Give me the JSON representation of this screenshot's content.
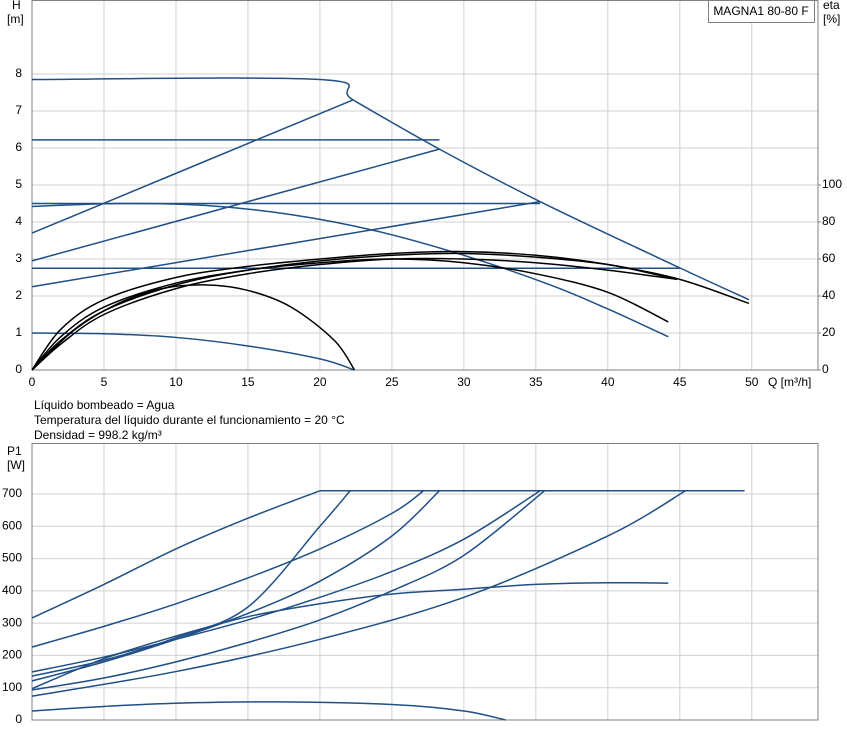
{
  "chart_data": [
    {
      "type": "line",
      "title": "MAGNA1 80-80 F",
      "ylabel": "H",
      "yunit": "[m]",
      "y2label": "eta",
      "y2unit": "[%]",
      "xlabel": "Q [m³/h]",
      "xlim": [
        0,
        54.6
      ],
      "ylim": [
        0,
        10
      ],
      "y2lim": [
        0,
        200
      ],
      "xticks": [
        0,
        5,
        10,
        15,
        20,
        25,
        30,
        35,
        40,
        45,
        50
      ],
      "yticks": [
        0,
        1,
        2,
        3,
        4,
        5,
        6,
        7,
        8
      ],
      "y2ticks": [
        0,
        20,
        40,
        60,
        80,
        100
      ],
      "grid": true,
      "annotations": [
        "Líquido bombeado = Agua",
        "Temperatura del líquido durante el funcionamiento = 20 °C",
        "Densidad = 998.2 kg/m³"
      ],
      "series": [
        {
          "color": "#1f4f85",
          "x": [
            0,
            20,
            22.3,
            28.3,
            35.3,
            45,
            49.8
          ],
          "values": [
            7.85,
            7.85,
            7.3,
            5.97,
            4.55,
            2.76,
            1.9
          ]
        },
        {
          "color": "#1f4f85",
          "x": [
            0,
            28.3
          ],
          "values": [
            6.22,
            6.22
          ]
        },
        {
          "color": "#1f4f85",
          "x": [
            0,
            35.3
          ],
          "values": [
            4.5,
            4.5
          ]
        },
        {
          "color": "#1f4f85",
          "x": [
            0,
            45
          ],
          "values": [
            2.75,
            2.75
          ]
        },
        {
          "color": "#1f4f85",
          "x": [
            0,
            22.3
          ],
          "values": [
            3.7,
            7.3
          ]
        },
        {
          "color": "#1f4f85",
          "x": [
            0,
            28.3
          ],
          "values": [
            2.95,
            5.97
          ]
        },
        {
          "color": "#1f4f85",
          "x": [
            0,
            35.3
          ],
          "values": [
            2.25,
            4.55
          ]
        },
        {
          "color": "#1f4f85",
          "x": [
            0,
            6,
            12,
            18,
            24,
            30,
            36,
            40,
            44.2
          ],
          "values": [
            4.42,
            4.5,
            4.45,
            4.2,
            3.75,
            3.1,
            2.3,
            1.65,
            0.9
          ]
        },
        {
          "color": "#1f4f85",
          "x": [
            0,
            5,
            10,
            15,
            20,
            22.4
          ],
          "values": [
            1.0,
            0.98,
            0.88,
            0.65,
            0.3,
            0
          ]
        },
        {
          "color": "#000000",
          "axis": "y2",
          "x": [
            0,
            3,
            6,
            9,
            12,
            15,
            18,
            21,
            22.4
          ],
          "values": [
            0,
            22,
            36,
            44,
            46,
            43,
            34,
            16,
            0
          ]
        },
        {
          "color": "#000000",
          "axis": "y2",
          "x": [
            0,
            2,
            5,
            10,
            15,
            20,
            25,
            30,
            35,
            40,
            45,
            49.8
          ],
          "values": [
            0,
            22,
            38,
            50,
            56,
            60,
            63,
            64,
            62,
            57,
            49,
            36
          ]
        },
        {
          "color": "#000000",
          "axis": "y2",
          "x": [
            0,
            2,
            5,
            10,
            15,
            20,
            25,
            30,
            35,
            40,
            44.8
          ],
          "values": [
            0,
            18,
            34,
            47,
            54,
            59,
            62,
            63,
            61,
            57,
            49
          ]
        },
        {
          "color": "#000000",
          "axis": "y2",
          "x": [
            0,
            2,
            5,
            10,
            15,
            20,
            25,
            30,
            35,
            40,
            44.2
          ],
          "values": [
            0,
            16,
            32,
            46,
            54,
            58,
            60,
            58,
            52,
            42,
            26
          ]
        },
        {
          "color": "#000000",
          "axis": "y2",
          "x": [
            0,
            2,
            5,
            10,
            15,
            20,
            25,
            30,
            35,
            40,
            44.8
          ],
          "values": [
            0,
            14,
            30,
            44,
            52,
            57,
            60,
            60,
            58,
            54,
            49
          ]
        }
      ]
    },
    {
      "type": "line",
      "ylabel": "P1",
      "yunit": "[W]",
      "xlim": [
        0,
        54.6
      ],
      "ylim": [
        0,
        858
      ],
      "xticks": [
        0,
        5,
        10,
        15,
        20,
        25,
        30,
        35,
        40,
        45,
        50
      ],
      "yticks": [
        0,
        100,
        200,
        300,
        400,
        500,
        600,
        700
      ],
      "grid": true,
      "series": [
        {
          "color": "#1f4f85",
          "x": [
            0,
            5,
            10,
            15,
            20
          ],
          "values": [
            316,
            420,
            530,
            625,
            710
          ]
        },
        {
          "color": "#1f4f85",
          "x": [
            0,
            5,
            10,
            15,
            20,
            22.1
          ],
          "values": [
            136,
            185,
            255,
            350,
            600,
            710
          ]
        },
        {
          "color": "#1f4f85",
          "x": [
            0,
            5,
            10,
            15,
            20,
            25,
            27.2
          ],
          "values": [
            226,
            290,
            360,
            440,
            530,
            640,
            710
          ]
        },
        {
          "color": "#1f4f85",
          "x": [
            0,
            5,
            10,
            15,
            20,
            25,
            28.3
          ],
          "values": [
            121,
            180,
            250,
            330,
            430,
            570,
            710
          ]
        },
        {
          "color": "#1f4f85",
          "x": [
            0,
            5,
            10,
            15,
            20,
            25,
            30,
            35.3
          ],
          "values": [
            149,
            195,
            250,
            310,
            380,
            460,
            560,
            710
          ]
        },
        {
          "color": "#1f4f85",
          "x": [
            0,
            5,
            10,
            15,
            20,
            25,
            30,
            35.6
          ],
          "values": [
            93,
            130,
            180,
            240,
            310,
            400,
            510,
            710
          ]
        },
        {
          "color": "#1f4f85",
          "x": [
            0,
            10,
            20,
            30,
            40,
            45.4
          ],
          "values": [
            74,
            150,
            250,
            380,
            570,
            710
          ]
        },
        {
          "color": "#1f4f85",
          "x": [
            20,
            49.5
          ],
          "values": [
            710,
            710
          ]
        },
        {
          "color": "#1f4f85",
          "x": [
            0,
            5,
            10,
            15,
            20,
            25,
            30,
            35,
            40,
            44.2
          ],
          "values": [
            97,
            190,
            260,
            320,
            360,
            390,
            405,
            420,
            425,
            424
          ]
        },
        {
          "color": "#1f4f85",
          "x": [
            0,
            5,
            10,
            17,
            25,
            30,
            32.9
          ],
          "values": [
            28,
            42,
            52,
            56,
            48,
            28,
            0
          ]
        }
      ]
    }
  ]
}
